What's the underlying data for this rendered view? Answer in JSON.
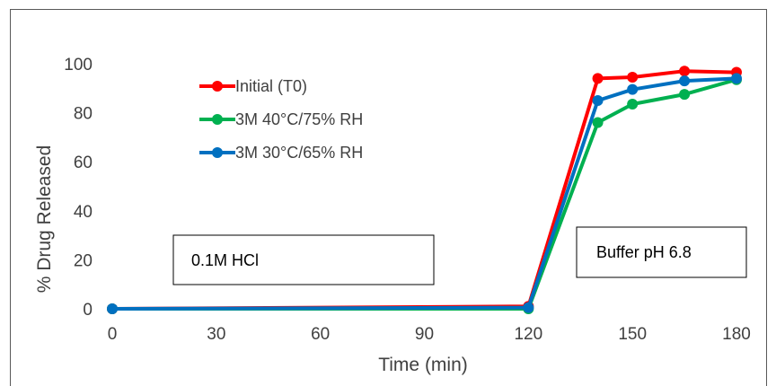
{
  "chart_data": {
    "type": "line",
    "title": "",
    "xlabel": "Time (min)",
    "ylabel": "% Drug Released",
    "xlim": [
      0,
      180
    ],
    "ylim": [
      0,
      100
    ],
    "x_ticks": [
      0,
      30,
      60,
      90,
      120,
      150,
      180
    ],
    "y_ticks": [
      0,
      20,
      40,
      60,
      80,
      100
    ],
    "grid": false,
    "legend_position": "top-left",
    "series": [
      {
        "name": "Initial (T0)",
        "color": "#ff0000",
        "x": [
          0,
          120,
          140,
          150,
          165,
          180
        ],
        "y": [
          0,
          1,
          94,
          94.5,
          97,
          96.5
        ]
      },
      {
        "name": "3M 40°C/75% RH",
        "color": "#00b050",
        "x": [
          0,
          120,
          140,
          150,
          165,
          180
        ],
        "y": [
          0,
          0,
          76,
          83.5,
          87.5,
          93.5
        ]
      },
      {
        "name": "3M 30°C/65% RH",
        "color": "#0070c0",
        "x": [
          0,
          120,
          140,
          150,
          165,
          180
        ],
        "y": [
          0,
          0.5,
          85,
          89.5,
          93,
          94
        ]
      }
    ],
    "annotations": [
      {
        "id": "acid",
        "text": "0.1M HCl"
      },
      {
        "id": "buffer",
        "text": "Buffer pH 6.8"
      }
    ]
  }
}
